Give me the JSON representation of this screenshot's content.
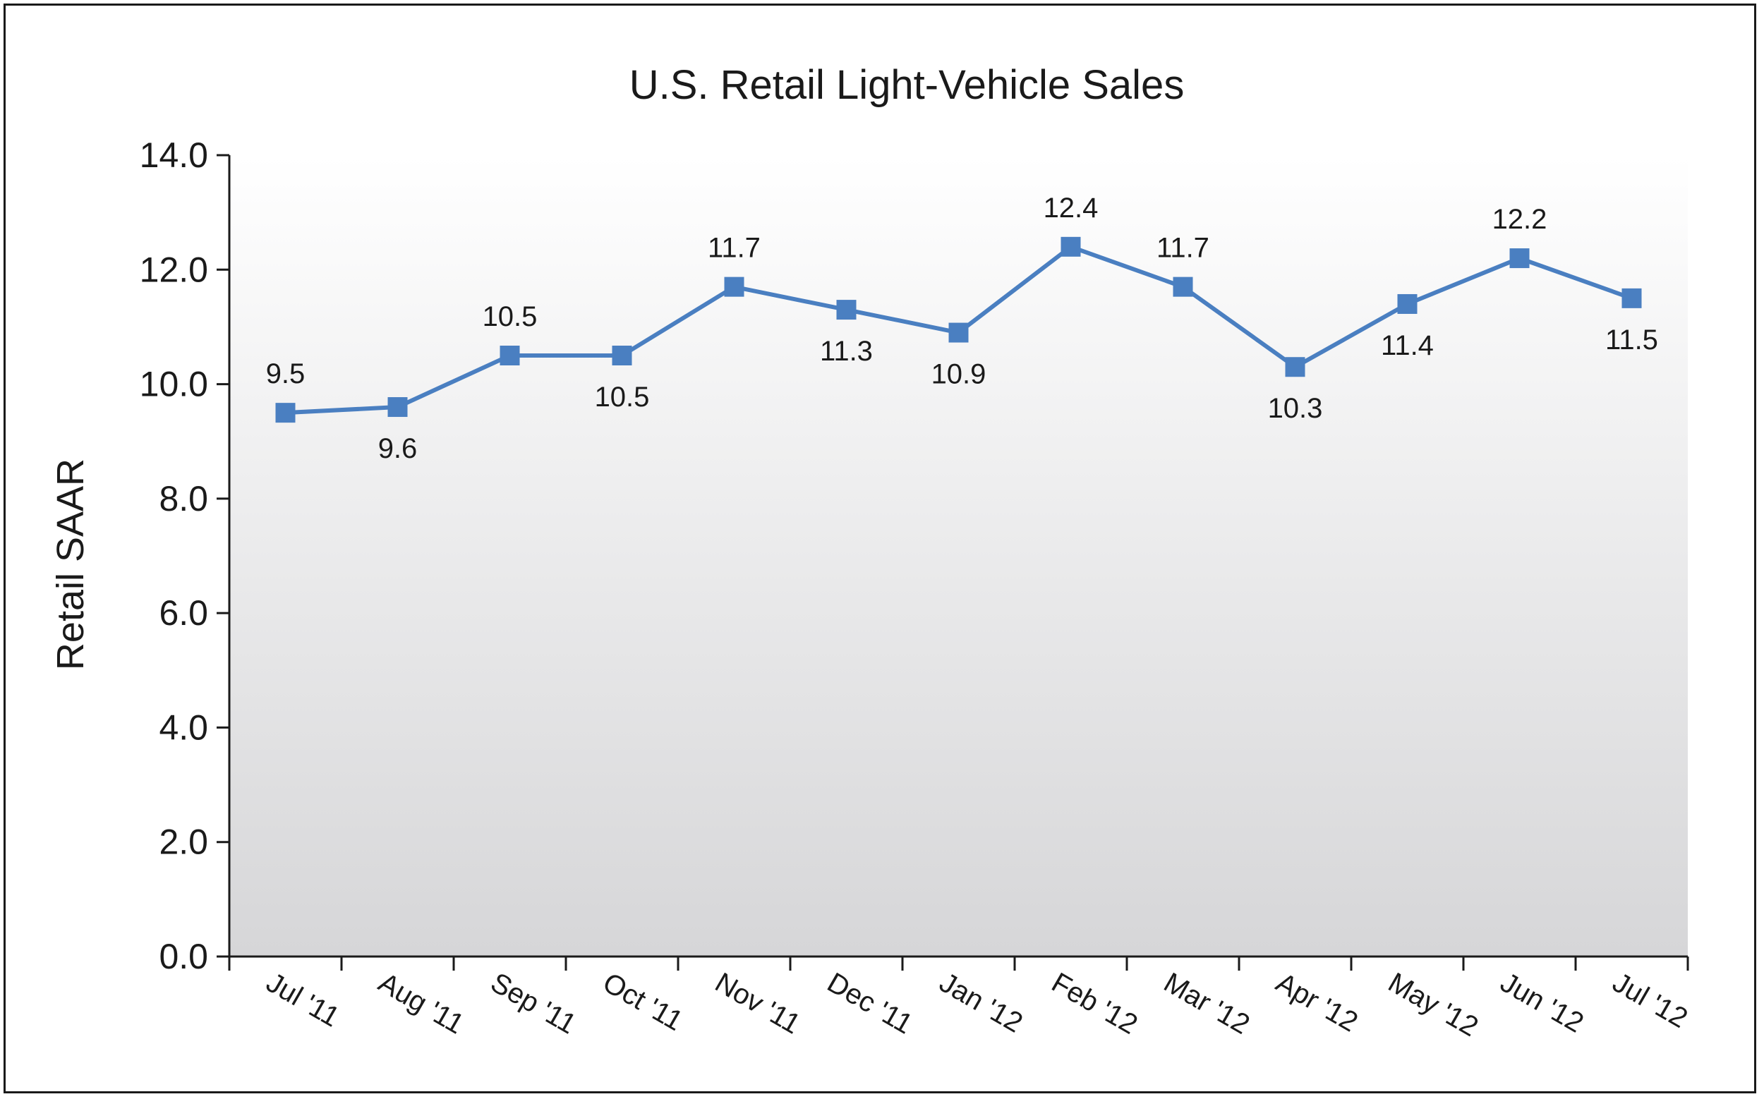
{
  "chart_data": {
    "type": "line",
    "title": "U.S. Retail Light-Vehicle Sales",
    "xlabel": "",
    "ylabel": "Retail SAAR",
    "ylim": [
      0,
      14
    ],
    "yticks": [
      "0.0",
      "2.0",
      "4.0",
      "6.0",
      "8.0",
      "10.0",
      "12.0",
      "14.0"
    ],
    "categories": [
      "Jul '11",
      "Aug '11",
      "Sep '11",
      "Oct '11",
      "Nov '11",
      "Dec '11",
      "Jan '12",
      "Feb '12",
      "Mar '12",
      "Apr '12",
      "May '12",
      "Jun '12",
      "Jul '12"
    ],
    "series": [
      {
        "values": [
          9.5,
          9.6,
          10.5,
          10.5,
          11.7,
          11.3,
          10.9,
          12.4,
          11.7,
          10.3,
          11.4,
          12.2,
          11.5
        ],
        "labels": [
          "9.5",
          "9.6",
          "10.5",
          "10.5",
          "11.7",
          "11.3",
          "10.9",
          "12.4",
          "11.7",
          "10.3",
          "11.4",
          "12.2",
          "11.5"
        ],
        "label_position": [
          "above",
          "below",
          "above",
          "below",
          "above",
          "below",
          "below",
          "above",
          "above",
          "below",
          "below",
          "above",
          "below"
        ],
        "color": "#4a7fc1"
      }
    ],
    "grid": false,
    "background_gradient": [
      "#ffffff",
      "#d6d6d8"
    ]
  }
}
